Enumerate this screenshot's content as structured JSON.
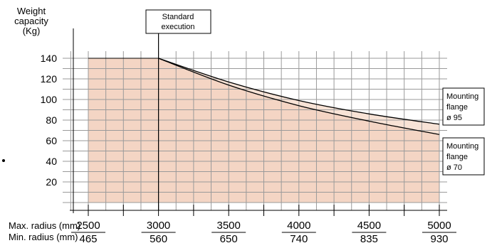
{
  "chart_data": {
    "type": "area",
    "ylabel_lines": [
      "Weight",
      "capacity",
      "(Kg)"
    ],
    "x_row_labels": [
      "Max. radius (mm)",
      "Min. radius (mm)"
    ],
    "yticks": [
      20,
      40,
      60,
      80,
      100,
      120,
      140
    ],
    "ylim": [
      0,
      140
    ],
    "x_ticks_max": [
      "2500",
      "3000",
      "3500",
      "4000",
      "4500",
      "5000"
    ],
    "x_ticks_min": [
      "465",
      "560",
      "650",
      "740",
      "835",
      "930"
    ],
    "xlim": [
      2500,
      5000
    ],
    "standard_execution_label": [
      "Standard",
      "execution"
    ],
    "standard_execution_x": 3000,
    "grid": true,
    "series": [
      {
        "name": "Mounting flange ø 95",
        "label_lines": [
          "Mounting",
          "flange",
          "ø 95"
        ],
        "x": [
          2500,
          3000,
          3500,
          4000,
          4500,
          5000
        ],
        "y": [
          140,
          140,
          117,
          99,
          86,
          76
        ]
      },
      {
        "name": "Mounting flange ø 70",
        "label_lines": [
          "Mounting",
          "flange",
          "ø 70"
        ],
        "x": [
          2500,
          3000,
          3500,
          4000,
          4500,
          5000
        ],
        "y": [
          140,
          140,
          114,
          94,
          79,
          66
        ]
      }
    ],
    "colors": {
      "fill": "#f4d5c4",
      "line": "#000000",
      "grid": "#9a9a9a"
    }
  }
}
